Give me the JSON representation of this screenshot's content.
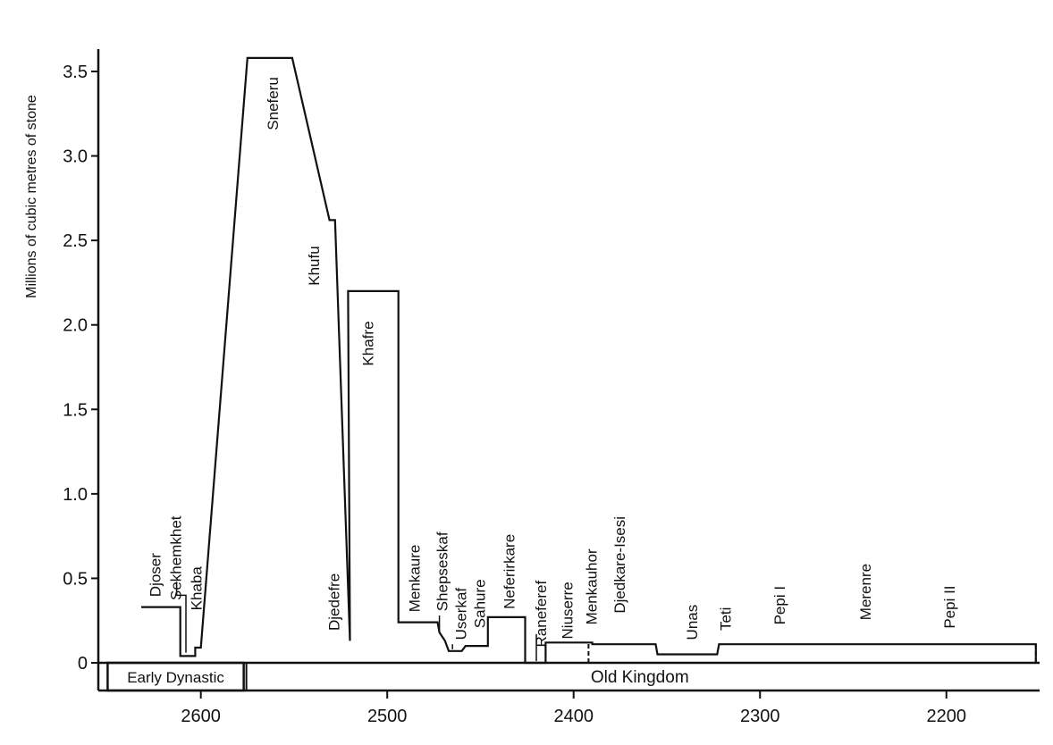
{
  "chart_data": {
    "type": "line",
    "ylabel": "Millions of cubic metres of stone",
    "xlabel": "",
    "x_reversed": true,
    "xlim": [
      2655,
      2150
    ],
    "ylim": [
      0,
      3.6
    ],
    "xticks": [
      2600,
      2500,
      2400,
      2300,
      2200
    ],
    "yticks": [
      0,
      0.5,
      1.0,
      1.5,
      2.0,
      2.5,
      3.0,
      3.5
    ],
    "ytick_labels": [
      "0",
      "0.5",
      "1.0",
      "1.5",
      "2.0",
      "2.5",
      "3.0",
      "3.5"
    ],
    "grid": false,
    "periods": [
      {
        "label": "Early Dynastic",
        "from": 2650,
        "to": 2577
      },
      {
        "label": "Old Kingdom",
        "from": 2577,
        "to": 2152
      }
    ],
    "reigns": [
      {
        "name": "Djoser",
        "start": 2631,
        "end": 2611,
        "volume": 0.33
      },
      {
        "name": "Sekhemkhet",
        "start": 2611,
        "end": 2605,
        "volume": 0.04
      },
      {
        "name": "Khaba",
        "start": 2605,
        "end": 2600,
        "volume": 0.09
      },
      {
        "name": "Sneferu",
        "start": 2575,
        "end": 2551,
        "volume": 3.58
      },
      {
        "name": "Khufu",
        "start": 2551,
        "end": 2531,
        "volume": 2.62
      },
      {
        "name": "Djedefre",
        "start": 2528,
        "end": 2520,
        "volume": 0.13
      },
      {
        "name": "Khafre",
        "start": 2520,
        "end": 2494,
        "volume": 2.2
      },
      {
        "name": "Menkaure",
        "start": 2494,
        "end": 2472,
        "volume": 0.24
      },
      {
        "name": "Shepseskaf",
        "start": 2472,
        "end": 2467,
        "volume": 0.13
      },
      {
        "name": "Userkaf",
        "start": 2467,
        "end": 2458,
        "volume": 0.07
      },
      {
        "name": "Sahure",
        "start": 2458,
        "end": 2446,
        "volume": 0.1
      },
      {
        "name": "Neferirkare",
        "start": 2446,
        "end": 2426,
        "volume": 0.27
      },
      {
        "name": "Raneferef",
        "start": 2426,
        "end": 2416,
        "volume": 0.0
      },
      {
        "name": "Niuserre",
        "start": 2416,
        "end": 2392,
        "volume": 0.12
      },
      {
        "name": "Menkauhor",
        "start": 2392,
        "end": 2388,
        "volume": 0.0
      },
      {
        "name": "Djedkare-Isesi",
        "start": 2388,
        "end": 2356,
        "volume": 0.11
      },
      {
        "name": "Unas",
        "start": 2356,
        "end": 2323,
        "volume": 0.05
      },
      {
        "name": "Teti",
        "start": 2323,
        "end": 2291,
        "volume": 0.11
      },
      {
        "name": "Pepi I",
        "start": 2289,
        "end": 2255,
        "volume": 0.1
      },
      {
        "name": "Merenre",
        "start": 2255,
        "end": 2246,
        "volume": 0.1
      },
      {
        "name": "Pepi II",
        "start": 2246,
        "end": 2152,
        "volume": 0.1
      }
    ],
    "series": [
      {
        "x": [
          2632,
          2611,
          2611,
          2603,
          2603,
          2600,
          2600,
          2575,
          2551,
          2551,
          2531,
          2528,
          2520,
          2520,
          2521,
          2494,
          2494,
          2473,
          2472,
          2469,
          2467,
          2460,
          2458,
          2452,
          2451,
          2446,
          2446,
          2426,
          2426,
          2415,
          2415,
          2392,
          2392,
          2390,
          2390,
          2356,
          2355,
          2323,
          2322,
          2152,
          2152
        ],
        "y": [
          0.33,
          0.33,
          0.04,
          0.04,
          0.09,
          0.09,
          0.09,
          3.58,
          3.58,
          3.58,
          2.62,
          2.62,
          0.13,
          0.13,
          2.2,
          2.2,
          0.24,
          0.24,
          0.18,
          0.13,
          0.07,
          0.07,
          0.1,
          0.1,
          0.1,
          0.1,
          0.27,
          0.27,
          0.0,
          0.0,
          0.12,
          0.12,
          0.12,
          0.12,
          0.11,
          0.11,
          0.05,
          0.05,
          0.11,
          0.11,
          0.0
        ]
      }
    ]
  }
}
